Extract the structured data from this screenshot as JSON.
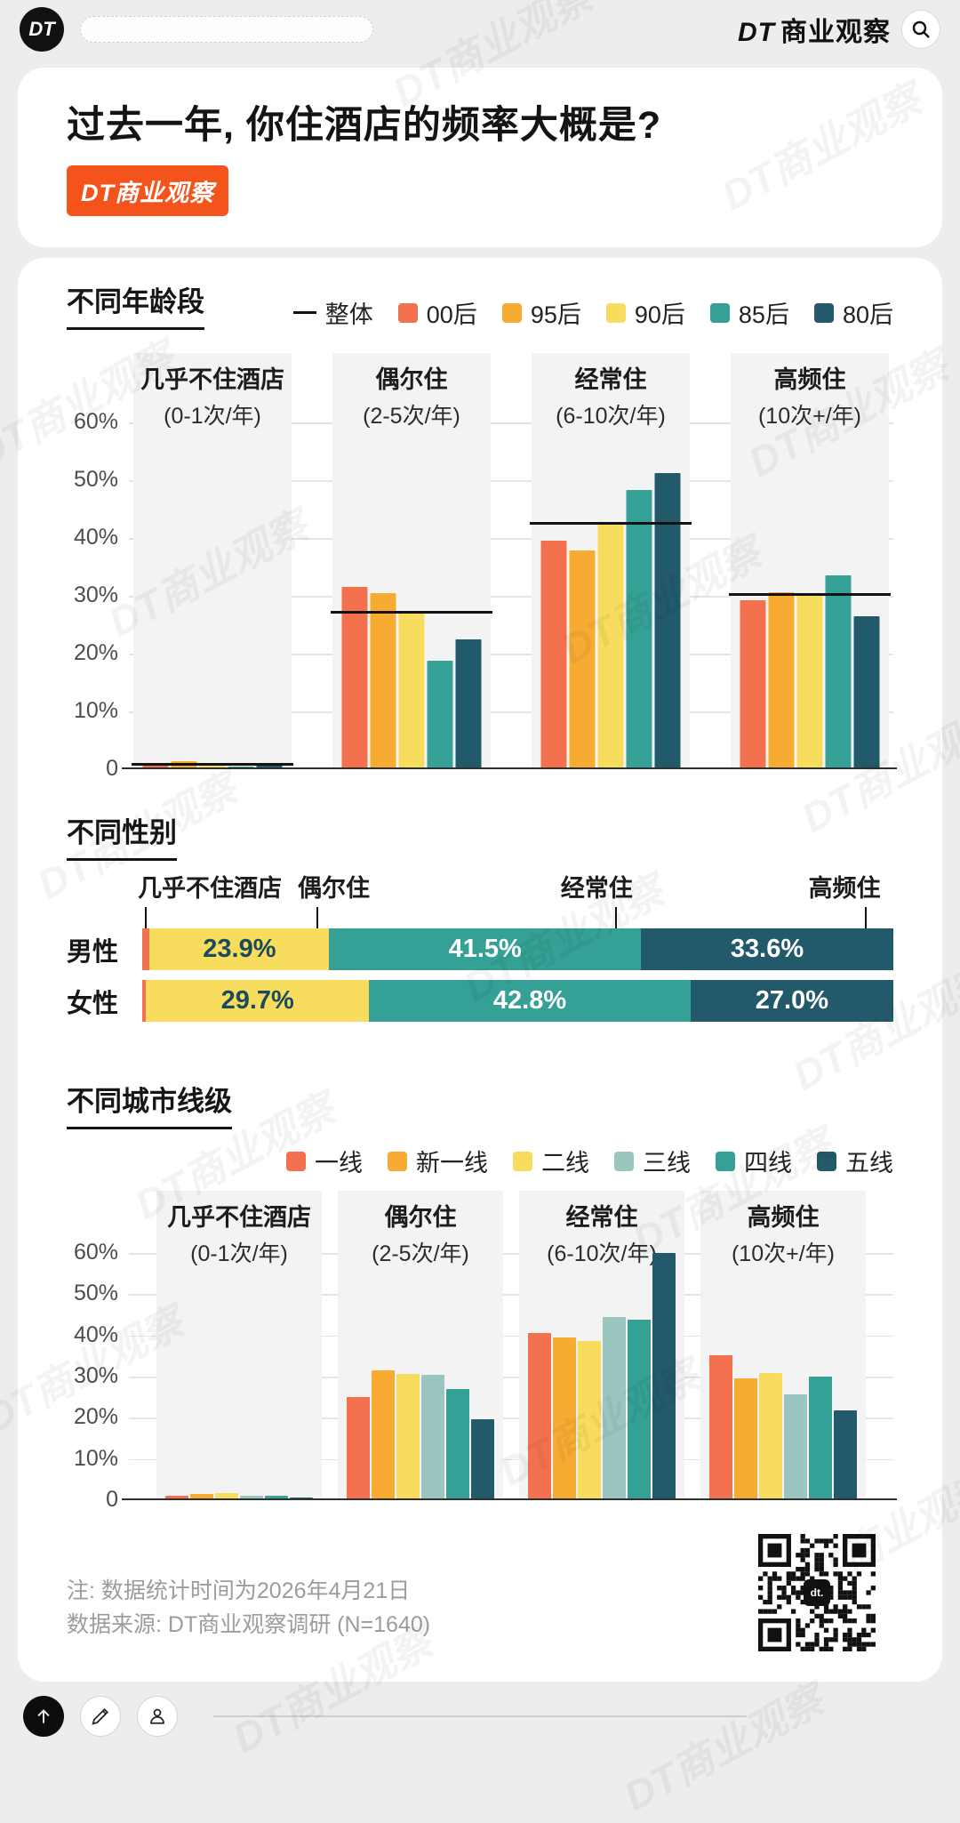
{
  "page": {
    "watermark": "DT商业观察"
  },
  "header": {
    "logo": "DT",
    "brand_dt": "DT",
    "brand_rest": "商业观察"
  },
  "title_card": {
    "title": "过去一年, 你住酒店的频率大概是?",
    "badge": "DT商业观察"
  },
  "footer": {
    "note1": "注: 数据统计时间为2026年4月21日",
    "note2": "数据来源: DT商业观察调研 (N=1640)",
    "qr_logo": "dt."
  },
  "chart_data": [
    {
      "type": "bar",
      "section_title": "不同年龄段",
      "overall_name": "整体",
      "overall_color": "#111111",
      "categories": [
        {
          "label": "几乎不住酒店",
          "sub": "(0-1次/年)"
        },
        {
          "label": "偶尔住",
          "sub": "(2-5次/年)"
        },
        {
          "label": "经常住",
          "sub": "(6-10次/年)"
        },
        {
          "label": "高频住",
          "sub": "(10次+/年)"
        }
      ],
      "series": [
        {
          "name": "00后",
          "color": "#F4714F",
          "values": [
            0.4,
            31.3,
            39.3,
            28.9
          ]
        },
        {
          "name": "95后",
          "color": "#F7AB33",
          "values": [
            1.1,
            30.2,
            37.5,
            30.3
          ]
        },
        {
          "name": "90后",
          "color": "#F8DC5E",
          "values": [
            0.6,
            26.7,
            42.0,
            29.8
          ]
        },
        {
          "name": "85后",
          "color": "#35A095",
          "values": [
            0.1,
            18.4,
            48.0,
            33.3
          ]
        },
        {
          "name": "80后",
          "color": "#235A6B",
          "values": [
            0.5,
            22.2,
            50.9,
            26.1
          ]
        }
      ],
      "overall": [
        0.6,
        27.0,
        42.3,
        30.0
      ],
      "ylim": [
        0,
        60
      ],
      "yticks": [
        "60%",
        "50%",
        "40%",
        "30%",
        "20%",
        "10%",
        "0"
      ],
      "grid": true,
      "legend_position": "top-right"
    },
    {
      "type": "stacked-bar-horizontal",
      "section_title": "不同性别",
      "column_labels": [
        "几乎不住酒店",
        "偶尔住",
        "经常住",
        "高频住"
      ],
      "segment_colors": [
        "#F4714F",
        "#F8DC5E",
        "#35A095",
        "#235A6B"
      ],
      "rows": [
        {
          "label": "男性",
          "segments": [
            {
              "value": 1.0,
              "text": ""
            },
            {
              "value": 23.9,
              "text": "23.9%"
            },
            {
              "value": 41.5,
              "text": "41.5%"
            },
            {
              "value": 33.6,
              "text": "33.6%"
            }
          ]
        },
        {
          "label": "女性",
          "segments": [
            {
              "value": 0.5,
              "text": ""
            },
            {
              "value": 29.7,
              "text": "29.7%"
            },
            {
              "value": 42.8,
              "text": "42.8%"
            },
            {
              "value": 27.0,
              "text": "27.0%"
            }
          ]
        }
      ]
    },
    {
      "type": "bar",
      "section_title": "不同城市线级",
      "categories": [
        {
          "label": "几乎不住酒店",
          "sub": "(0-1次/年)"
        },
        {
          "label": "偶尔住",
          "sub": "(2-5次/年)"
        },
        {
          "label": "经常住",
          "sub": "(6-10次/年)"
        },
        {
          "label": "高频住",
          "sub": "(10次+/年)"
        }
      ],
      "series": [
        {
          "name": "一线",
          "color": "#F4714F",
          "values": [
            0.7,
            24.5,
            40.2,
            34.7
          ]
        },
        {
          "name": "新一线",
          "color": "#F7AB33",
          "values": [
            1.0,
            31.0,
            39.0,
            29.2
          ]
        },
        {
          "name": "二线",
          "color": "#F8DC5E",
          "values": [
            1.4,
            30.2,
            38.2,
            30.5
          ]
        },
        {
          "name": "三线",
          "color": "#9BC6C0",
          "values": [
            0.7,
            30.0,
            44.0,
            25.3
          ]
        },
        {
          "name": "四线",
          "color": "#35A095",
          "values": [
            0.6,
            26.5,
            43.4,
            29.5
          ]
        },
        {
          "name": "五线",
          "color": "#235A6B",
          "values": [
            0.3,
            19.2,
            59.5,
            21.3
          ]
        }
      ],
      "ylim": [
        0,
        60
      ],
      "yticks": [
        "60%",
        "50%",
        "40%",
        "30%",
        "20%",
        "10%",
        "0"
      ],
      "grid": true,
      "legend_position": "top-right"
    }
  ]
}
